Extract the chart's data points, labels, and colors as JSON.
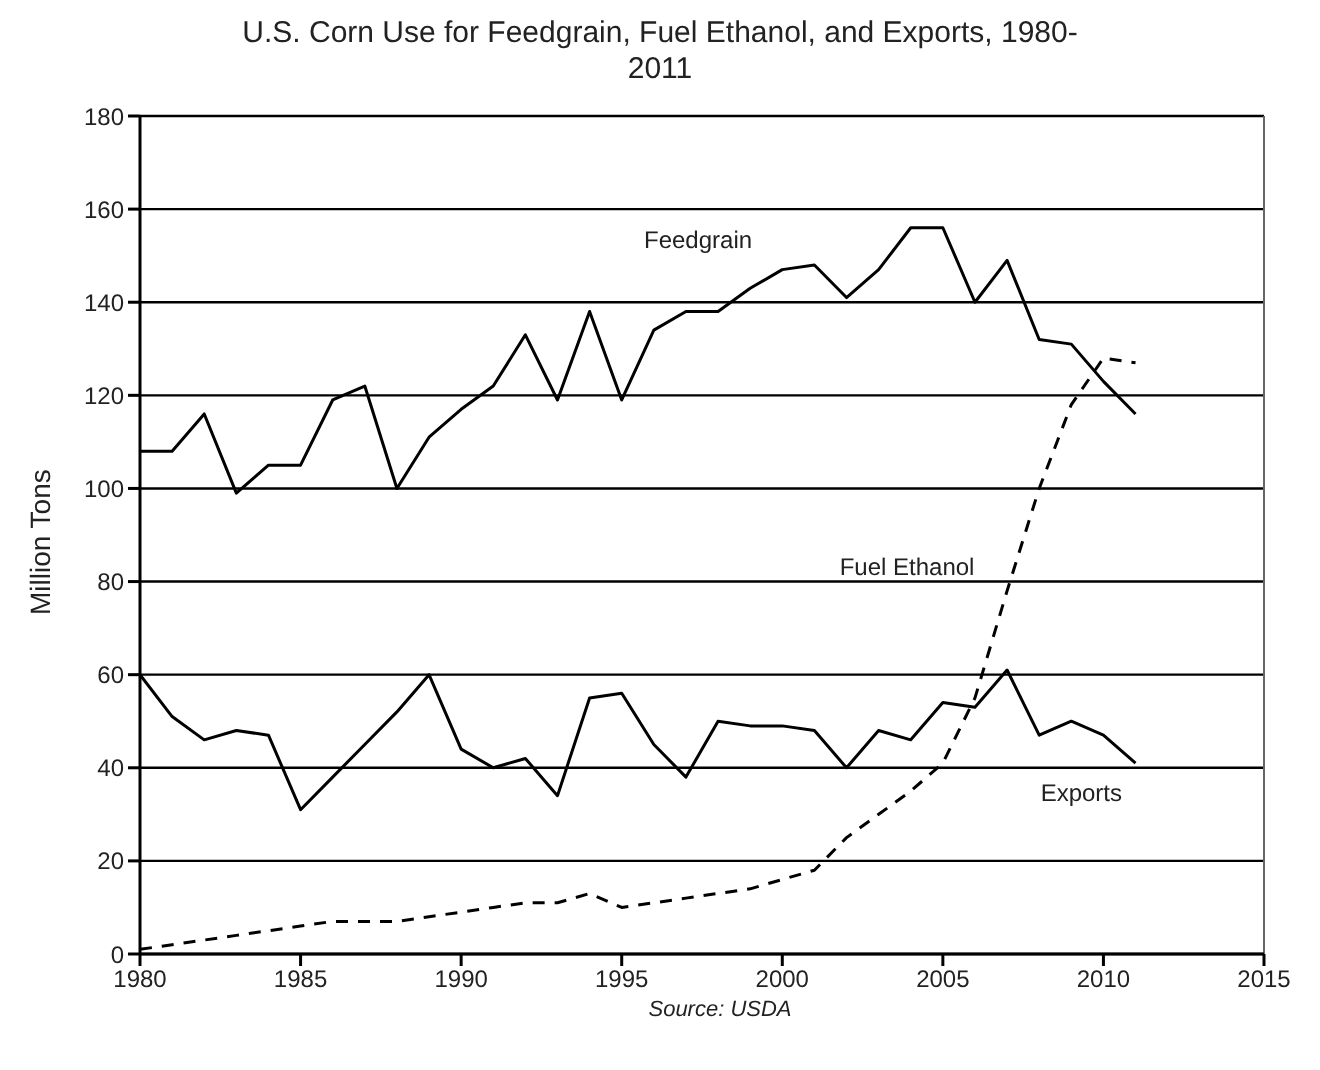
{
  "chart_data": {
    "type": "line",
    "title": "U.S. Corn Use for Feedgrain, Fuel Ethanol, and Exports, 1980-2011",
    "ylabel": "Million Tons",
    "annotations": [
      "Source: USDA"
    ],
    "x": [
      1980,
      1981,
      1982,
      1983,
      1984,
      1985,
      1986,
      1987,
      1988,
      1989,
      1990,
      1991,
      1992,
      1993,
      1994,
      1995,
      1996,
      1997,
      1998,
      1999,
      2000,
      2001,
      2002,
      2003,
      2004,
      2005,
      2006,
      2007,
      2008,
      2009,
      2010,
      2011
    ],
    "series": [
      {
        "name": "Feedgrain",
        "color": "#000000",
        "line_style": "solid",
        "values": [
          108,
          108,
          116,
          99,
          105,
          105,
          119,
          122,
          100,
          111,
          117,
          122,
          133,
          119,
          138,
          119,
          134,
          138,
          138,
          143,
          147,
          148,
          141,
          147,
          156,
          156,
          140,
          149,
          132,
          131,
          123,
          116
        ]
      },
      {
        "name": "Fuel Ethanol",
        "color": "#000000",
        "line_style": "dashed",
        "values": [
          1,
          2,
          3,
          4,
          5,
          6,
          7,
          7,
          7,
          8,
          9,
          10,
          11,
          11,
          13,
          10,
          11,
          12,
          13,
          14,
          16,
          18,
          25,
          30,
          35,
          41,
          55,
          78,
          100,
          118,
          128,
          127
        ]
      },
      {
        "name": "Exports",
        "color": "#000000",
        "line_style": "solid",
        "values": [
          60,
          51,
          46,
          48,
          47,
          31,
          38,
          45,
          52,
          60,
          44,
          40,
          42,
          34,
          55,
          56,
          45,
          38,
          50,
          49,
          49,
          48,
          40,
          48,
          46,
          54,
          53,
          61,
          47,
          50,
          47,
          41
        ]
      }
    ],
    "xlim": [
      1980,
      2015
    ],
    "xticks": [
      1980,
      1985,
      1990,
      1995,
      2000,
      2005,
      2010,
      2015
    ],
    "ylim": [
      0,
      180
    ],
    "yticks": [
      0,
      20,
      40,
      60,
      80,
      100,
      120,
      140,
      160,
      180
    ],
    "grid": "y",
    "legend": false,
    "marker": "none"
  }
}
